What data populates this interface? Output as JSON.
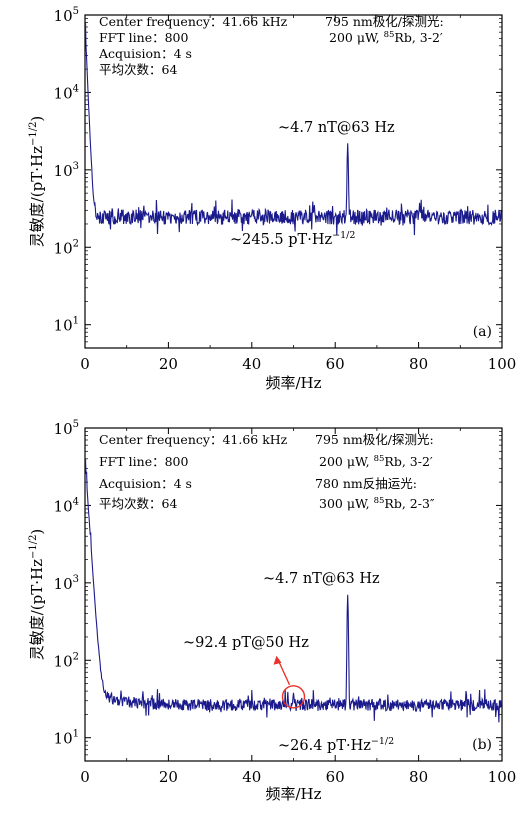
{
  "chart_data": [
    {
      "type": "line",
      "panel_label": "(a)",
      "xlabel": "频率/Hz",
      "ylabel": "灵敏度/(pT·Hz",
      "ylabel_sup": "−1/2",
      "ylabel_close": ")",
      "x_scale": "linear",
      "y_scale": "log",
      "xlim": [
        0,
        100
      ],
      "ylim": [
        5,
        100000
      ],
      "x_ticks": [
        0,
        20,
        40,
        60,
        80,
        100
      ],
      "x_tick_labels": [
        "0",
        "20",
        "40",
        "60",
        "80",
        "100"
      ],
      "y_ticks": [
        10,
        100,
        1000,
        10000,
        100000
      ],
      "y_tick_base": "10",
      "y_tick_exps": [
        "1",
        "2",
        "3",
        "4",
        "5"
      ],
      "info_left": [
        "Center frequency：41.66 kHz",
        "FFT line：800",
        "Acquision：4 s",
        "平均次数：64"
      ],
      "info_right": [
        {
          "pre": "795 nm极化/探测光:",
          "sup": "",
          "post": ""
        },
        {
          "pre": "200 μW, ",
          "sup": "85",
          "post": "Rb, 3-2′"
        }
      ],
      "noise_floor": 245.5,
      "noise_floor_label_pre": "~245.5 pT·Hz",
      "noise_floor_label_sup": "−1/2",
      "peaks": [
        {
          "x": 63,
          "y": 2200,
          "label": "~4.7 nT@63 Hz"
        }
      ],
      "dc_peak": 80000,
      "line_color": "#1a1a8c"
    },
    {
      "type": "line",
      "panel_label": "(b)",
      "xlabel": "频率/Hz",
      "ylabel": "灵敏度/(pT·Hz",
      "ylabel_sup": "−1/2",
      "ylabel_close": ")",
      "x_scale": "linear",
      "y_scale": "log",
      "xlim": [
        0,
        100
      ],
      "ylim": [
        5,
        100000
      ],
      "x_ticks": [
        0,
        20,
        40,
        60,
        80,
        100
      ],
      "x_tick_labels": [
        "0",
        "20",
        "40",
        "60",
        "80",
        "100"
      ],
      "y_ticks": [
        10,
        100,
        1000,
        10000,
        100000
      ],
      "y_tick_base": "10",
      "y_tick_exps": [
        "1",
        "2",
        "3",
        "4",
        "5"
      ],
      "info_left": [
        "Center frequency：41.66 kHz",
        "FFT line：800",
        "Acquision：4 s",
        "平均次数：64"
      ],
      "info_right": [
        {
          "pre": "795 nm极化/探测光:",
          "sup": "",
          "post": ""
        },
        {
          "pre": "200 μW, ",
          "sup": "85",
          "post": "Rb, 3-2′"
        },
        {
          "pre": "780 nm反抽运光:",
          "sup": "",
          "post": ""
        },
        {
          "pre": "300 μW, ",
          "sup": "85",
          "post": "Rb, 2-3″"
        }
      ],
      "noise_floor": 26.4,
      "noise_floor_label_pre": "~26.4 pT·Hz",
      "noise_floor_label_sup": "−1/2",
      "peaks": [
        {
          "x": 63,
          "y": 700,
          "label": "~4.7 nT@63 Hz"
        },
        {
          "x": 50,
          "y": 38,
          "label": "~92.4 pT@50 Hz"
        }
      ],
      "dc_peak": 40000,
      "highlight_color": "#e8322a",
      "line_color": "#1a1a8c"
    }
  ]
}
